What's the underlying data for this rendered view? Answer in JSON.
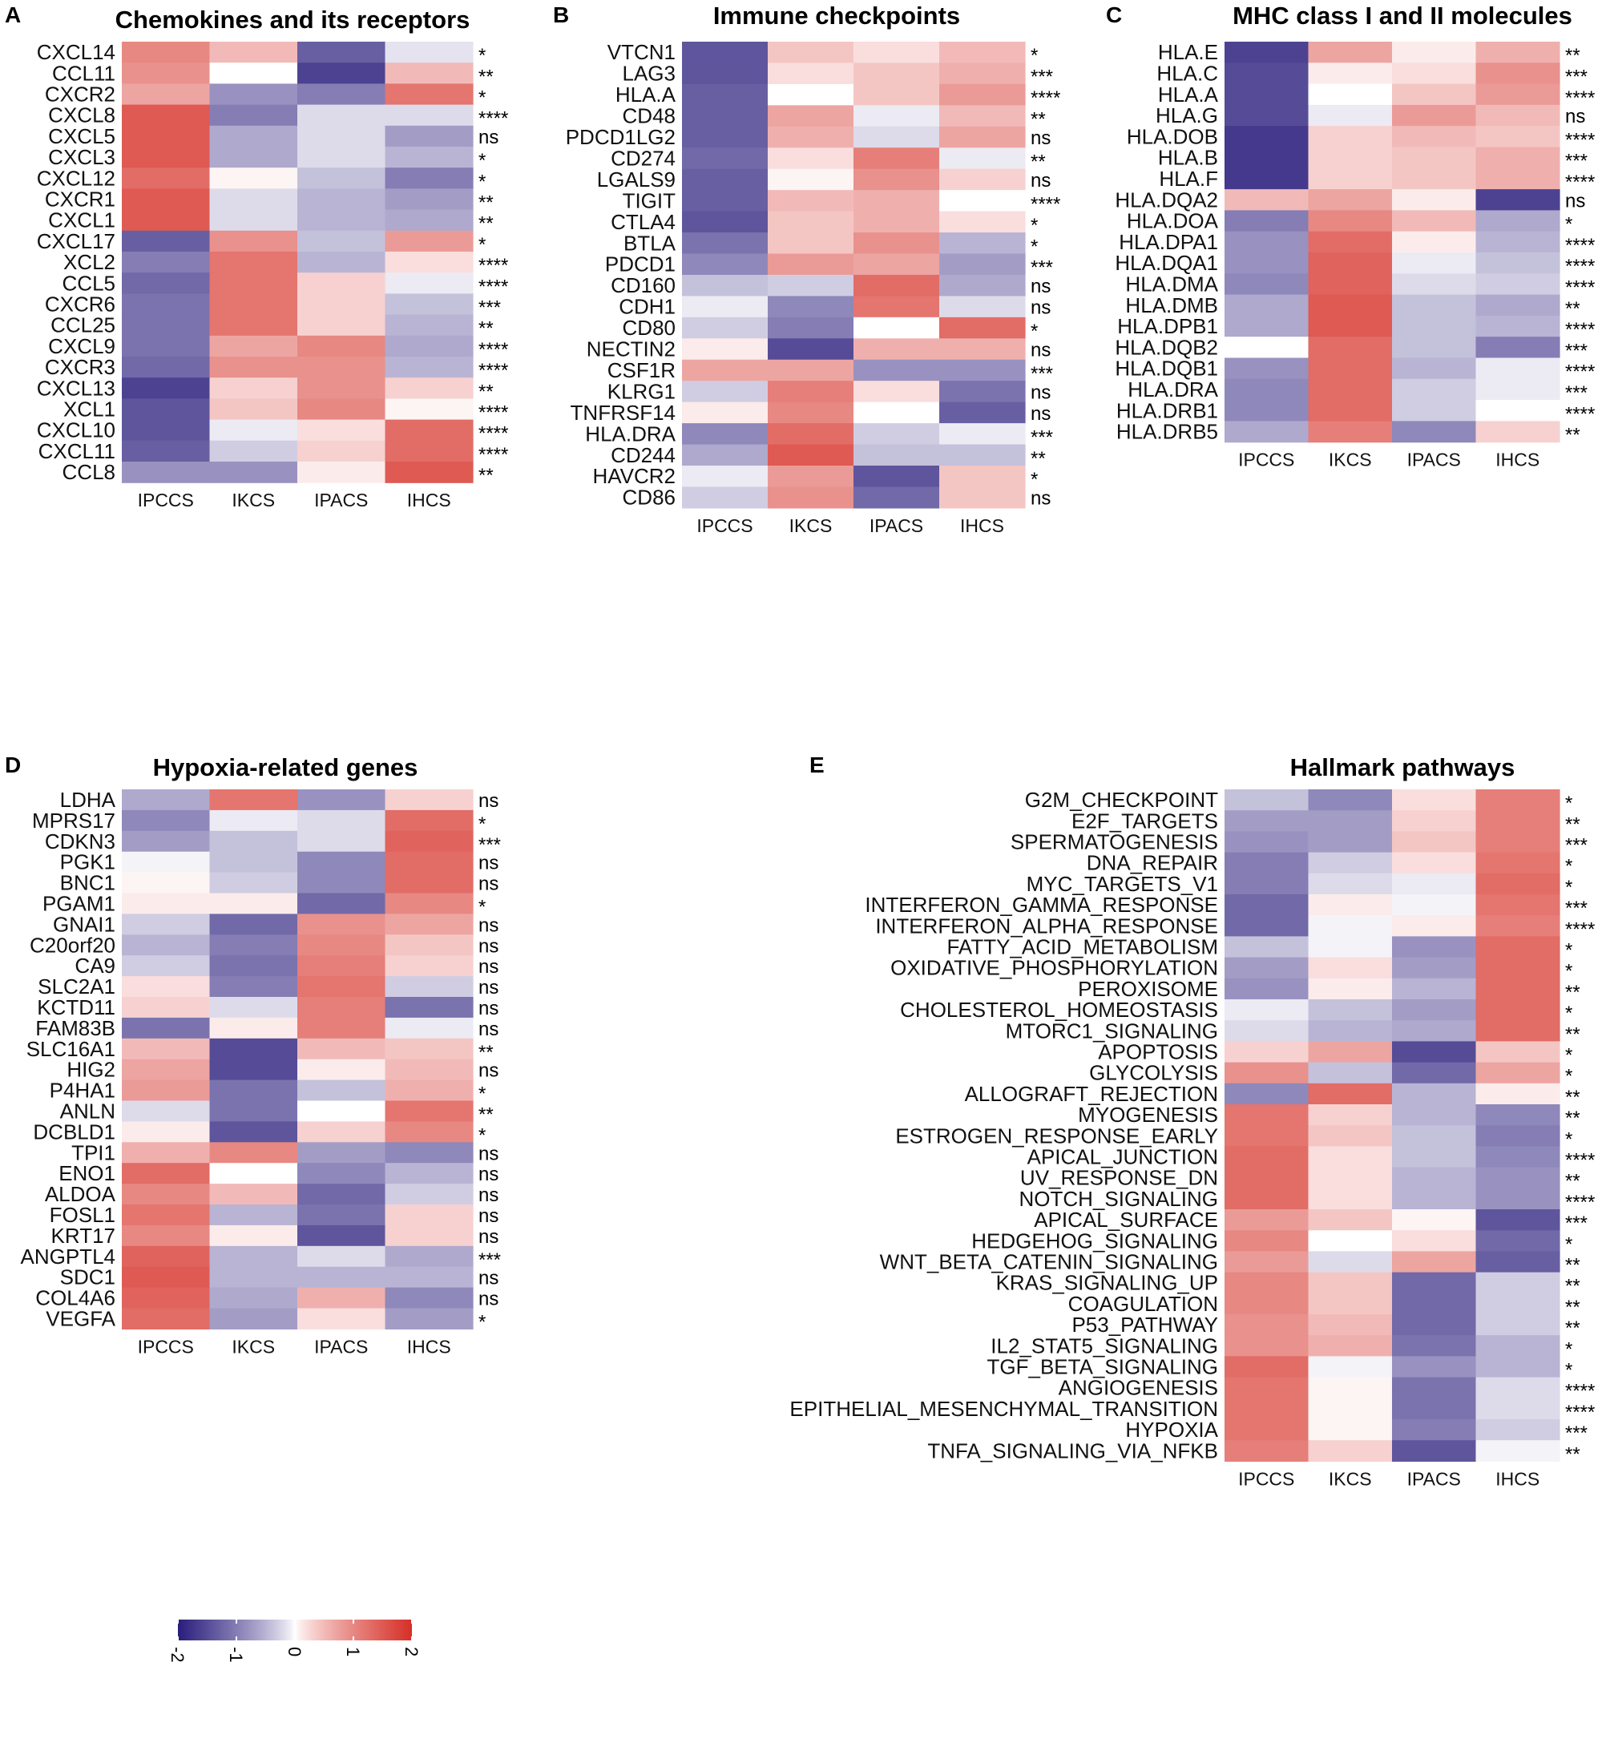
{
  "colors": {
    "low": "#2a1d7c",
    "mid": "#ffffff",
    "high": "#d62f27"
  },
  "chart_data": [
    {
      "type": "heatmap",
      "panel": "A",
      "title": "Chemokines and its receptors",
      "columns": [
        "IPCCS",
        "IKCS",
        "IPACS",
        "IHCS"
      ],
      "rows": [
        "CXCL14",
        "CCL11",
        "CXCR2",
        "CXCL8",
        "CXCL5",
        "CXCL3",
        "CXCL12",
        "CXCR1",
        "CXCL1",
        "CXCL17",
        "XCL2",
        "CCL5",
        "CXCR6",
        "CCL25",
        "CXCL9",
        "CXCR3",
        "CXCL13",
        "XCL1",
        "CXCL10",
        "CXCL11",
        "CCL8"
      ],
      "values": [
        [
          1.0,
          0.5,
          -1.3,
          -0.15
        ],
        [
          0.9,
          0.0,
          -1.6,
          0.5
        ],
        [
          0.7,
          -0.8,
          -1.0,
          1.2
        ],
        [
          1.5,
          -1.0,
          -0.2,
          -0.2
        ],
        [
          1.5,
          -0.6,
          -0.2,
          -0.7
        ],
        [
          1.5,
          -0.6,
          -0.2,
          -0.5
        ],
        [
          1.3,
          0.05,
          -0.4,
          -1.0
        ],
        [
          1.5,
          -0.2,
          -0.5,
          -0.7
        ],
        [
          1.5,
          -0.2,
          -0.5,
          -0.6
        ],
        [
          -1.3,
          0.9,
          -0.4,
          0.8
        ],
        [
          -1.0,
          1.2,
          -0.5,
          0.2
        ],
        [
          -1.2,
          1.2,
          0.3,
          -0.1
        ],
        [
          -1.1,
          1.2,
          0.3,
          -0.4
        ],
        [
          -1.1,
          1.2,
          0.3,
          -0.5
        ],
        [
          -1.1,
          0.7,
          1.0,
          -0.6
        ],
        [
          -1.2,
          0.9,
          0.9,
          -0.5
        ],
        [
          -1.6,
          0.3,
          0.9,
          0.3
        ],
        [
          -1.4,
          0.4,
          1.0,
          0.05
        ],
        [
          -1.4,
          -0.1,
          0.2,
          1.3
        ],
        [
          -1.3,
          -0.3,
          0.3,
          1.3
        ],
        [
          -0.8,
          -0.8,
          0.1,
          1.5
        ]
      ],
      "significance": [
        "*",
        "**",
        "*",
        "****",
        "ns",
        "*",
        "*",
        "**",
        "**",
        "*",
        "****",
        "****",
        "***",
        "**",
        "****",
        "****",
        "**",
        "****",
        "****",
        "****",
        "**"
      ],
      "xlabel": "",
      "ylabel": "",
      "zlim": [
        -2,
        2
      ]
    },
    {
      "type": "heatmap",
      "panel": "B",
      "title": "Immune checkpoints",
      "columns": [
        "IPCCS",
        "IKCS",
        "IPACS",
        "IHCS"
      ],
      "rows": [
        "VTCN1",
        "LAG3",
        "HLA.A",
        "CD48",
        "PDCD1LG2",
        "CD274",
        "LGALS9",
        "TIGIT",
        "CTLA4",
        "BTLA",
        "PDCD1",
        "CD160",
        "CDH1",
        "CD80",
        "NECTIN2",
        "CSF1R",
        "KLRG1",
        "TNFRSF14",
        "HLA.DRA",
        "CD244",
        "HAVCR2",
        "CD86"
      ],
      "values": [
        [
          -1.4,
          0.4,
          0.2,
          0.5
        ],
        [
          -1.4,
          0.2,
          0.4,
          0.6
        ],
        [
          -1.3,
          0.0,
          0.4,
          0.8
        ],
        [
          -1.3,
          0.7,
          -0.1,
          0.5
        ],
        [
          -1.3,
          0.6,
          -0.2,
          0.7
        ],
        [
          -1.2,
          0.2,
          1.1,
          -0.1
        ],
        [
          -1.3,
          0.05,
          0.9,
          0.3
        ],
        [
          -1.3,
          0.5,
          0.6,
          0.0
        ],
        [
          -1.4,
          0.4,
          0.6,
          0.2
        ],
        [
          -1.1,
          0.4,
          0.9,
          -0.5
        ],
        [
          -0.9,
          0.8,
          0.7,
          -0.7
        ],
        [
          -0.4,
          -0.3,
          1.3,
          -0.6
        ],
        [
          -0.1,
          -0.9,
          1.2,
          -0.2
        ],
        [
          -0.3,
          -1.0,
          0.0,
          1.3
        ],
        [
          0.1,
          -1.5,
          0.6,
          0.6
        ],
        [
          0.7,
          0.7,
          -0.8,
          -0.8
        ],
        [
          -0.3,
          1.1,
          0.2,
          -1.1
        ],
        [
          0.1,
          1.0,
          0.0,
          -1.3
        ],
        [
          -0.9,
          1.3,
          -0.3,
          -0.1
        ],
        [
          -0.6,
          1.5,
          -0.4,
          -0.4
        ],
        [
          -0.1,
          0.8,
          -1.4,
          0.4
        ],
        [
          -0.3,
          0.9,
          -1.2,
          0.4
        ]
      ],
      "significance": [
        "*",
        "***",
        "****",
        "**",
        "ns",
        "**",
        "ns",
        "****",
        "*",
        "*",
        "***",
        "ns",
        "ns",
        "*",
        "ns",
        "***",
        "ns",
        "ns",
        "***",
        "**",
        "*",
        "ns"
      ],
      "xlabel": "",
      "ylabel": "",
      "zlim": [
        -2,
        2
      ]
    },
    {
      "type": "heatmap",
      "panel": "C",
      "title": "MHC class I and II molecules",
      "columns": [
        "IPCCS",
        "IKCS",
        "IPACS",
        "IHCS"
      ],
      "rows": [
        "HLA.E",
        "HLA.C",
        "HLA.A",
        "HLA.G",
        "HLA.DOB",
        "HLA.B",
        "HLA.F",
        "HLA.DQA2",
        "HLA.DOA",
        "HLA.DPA1",
        "HLA.DQA1",
        "HLA.DMA",
        "HLA.DMB",
        "HLA.DPB1",
        "HLA.DQB2",
        "HLA.DQB1",
        "HLA.DRA",
        "HLA.DRB1",
        "HLA.DRB5"
      ],
      "values": [
        [
          -1.6,
          0.7,
          0.1,
          0.6
        ],
        [
          -1.5,
          0.1,
          0.2,
          0.9
        ],
        [
          -1.5,
          0.0,
          0.4,
          0.8
        ],
        [
          -1.5,
          -0.1,
          0.8,
          0.5
        ],
        [
          -1.7,
          0.3,
          0.5,
          0.4
        ],
        [
          -1.7,
          0.3,
          0.4,
          0.6
        ],
        [
          -1.7,
          0.3,
          0.4,
          0.6
        ],
        [
          0.5,
          0.7,
          0.1,
          -1.6
        ],
        [
          -1.0,
          1.0,
          0.5,
          -0.6
        ],
        [
          -0.8,
          1.3,
          0.1,
          -0.5
        ],
        [
          -0.8,
          1.4,
          -0.1,
          -0.4
        ],
        [
          -0.9,
          1.4,
          -0.2,
          -0.3
        ],
        [
          -0.6,
          1.5,
          -0.4,
          -0.6
        ],
        [
          -0.6,
          1.5,
          -0.4,
          -0.5
        ],
        [
          0.0,
          1.3,
          -0.4,
          -1.0
        ],
        [
          -0.8,
          1.3,
          -0.5,
          -0.1
        ],
        [
          -0.9,
          1.3,
          -0.3,
          -0.1
        ],
        [
          -0.9,
          1.3,
          -0.3,
          0.0
        ],
        [
          -0.6,
          1.1,
          -0.9,
          0.3
        ]
      ],
      "significance": [
        "**",
        "***",
        "****",
        "ns",
        "****",
        "***",
        "****",
        "ns",
        "*",
        "****",
        "****",
        "****",
        "**",
        "****",
        "***",
        "****",
        "***",
        "****",
        "**"
      ],
      "xlabel": "",
      "ylabel": "",
      "zlim": [
        -2,
        2
      ]
    },
    {
      "type": "heatmap",
      "panel": "D",
      "title": "Hypoxia-related genes",
      "columns": [
        "IPCCS",
        "IKCS",
        "IPACS",
        "IHCS"
      ],
      "rows": [
        "LDHA",
        "MPRS17",
        "CDKN3",
        "PGK1",
        "BNC1",
        "PGAM1",
        "GNAI1",
        "C20orf20",
        "CA9",
        "SLC2A1",
        "KCTD11",
        "FAM83B",
        "SLC16A1",
        "HIG2",
        "P4HA1",
        "ANLN",
        "DCBLD1",
        "TPI1",
        "ENO1",
        "ALDOA",
        "FOSL1",
        "KRT17",
        "ANGPTL4",
        "SDC1",
        "COL4A6",
        "VEGFA"
      ],
      "values": [
        [
          -0.6,
          1.2,
          -0.8,
          0.3
        ],
        [
          -0.9,
          -0.1,
          -0.2,
          1.3
        ],
        [
          -0.7,
          -0.4,
          -0.2,
          1.4
        ],
        [
          -0.05,
          -0.4,
          -0.9,
          1.3
        ],
        [
          0.05,
          -0.3,
          -0.9,
          1.3
        ],
        [
          0.1,
          0.1,
          -1.2,
          1.0
        ],
        [
          -0.3,
          -1.2,
          0.9,
          0.7
        ],
        [
          -0.5,
          -1.0,
          1.0,
          0.4
        ],
        [
          -0.3,
          -1.1,
          1.1,
          0.3
        ],
        [
          0.2,
          -1.0,
          1.2,
          -0.3
        ],
        [
          0.3,
          -0.2,
          1.1,
          -1.1
        ],
        [
          -1.1,
          0.1,
          1.1,
          -0.1
        ],
        [
          0.5,
          -1.5,
          0.5,
          0.4
        ],
        [
          0.7,
          -1.5,
          0.1,
          0.5
        ],
        [
          0.8,
          -1.1,
          -0.4,
          0.6
        ],
        [
          -0.2,
          -1.1,
          0.0,
          1.2
        ],
        [
          0.1,
          -1.4,
          0.3,
          1.0
        ],
        [
          0.6,
          1.0,
          -0.7,
          -0.9
        ],
        [
          1.3,
          0.0,
          -0.9,
          -0.5
        ],
        [
          1.0,
          0.5,
          -1.2,
          -0.3
        ],
        [
          1.2,
          -0.5,
          -1.1,
          0.3
        ],
        [
          1.0,
          0.1,
          -1.4,
          0.3
        ],
        [
          1.4,
          -0.5,
          -0.2,
          -0.6
        ],
        [
          1.5,
          -0.5,
          -0.5,
          -0.5
        ],
        [
          1.4,
          -0.6,
          0.6,
          -0.9
        ],
        [
          1.3,
          -0.7,
          0.2,
          -0.7
        ]
      ],
      "significance": [
        "ns",
        "*",
        "***",
        "ns",
        "ns",
        "*",
        "ns",
        "ns",
        "ns",
        "ns",
        "ns",
        "ns",
        "**",
        "ns",
        "*",
        "**",
        "*",
        "ns",
        "ns",
        "ns",
        "ns",
        "ns",
        "***",
        "ns",
        "ns",
        "*"
      ],
      "xlabel": "",
      "ylabel": "",
      "zlim": [
        -2,
        2
      ]
    },
    {
      "type": "heatmap",
      "panel": "E",
      "title": "Hallmark pathways",
      "columns": [
        "IPCCS",
        "IKCS",
        "IPACS",
        "IHCS"
      ],
      "rows": [
        "G2M_CHECKPOINT",
        "E2F_TARGETS",
        "SPERMATOGENESIS",
        "DNA_REPAIR",
        "MYC_TARGETS_V1",
        "INTERFERON_GAMMA_RESPONSE",
        "INTERFERON_ALPHA_RESPONSE",
        "FATTY_ACID_METABOLISM",
        "OXIDATIVE_PHOSPHORYLATION",
        "PEROXISOME",
        "CHOLESTEROL_HOMEOSTASIS",
        "MTORC1_SIGNALING",
        "APOPTOSIS",
        "GLYCOLYSIS",
        "ALLOGRAFT_REJECTION",
        "MYOGENESIS",
        "ESTROGEN_RESPONSE_EARLY",
        "APICAL_JUNCTION",
        "UV_RESPONSE_DN",
        "NOTCH_SIGNALING",
        "APICAL_SURFACE",
        "HEDGEHOG_SIGNALING",
        "WNT_BETA_CATENIN_SIGNALING",
        "KRAS_SIGNALING_UP",
        "COAGULATION",
        "P53_PATHWAY",
        "IL2_STAT5_SIGNALING",
        "TGF_BETA_SIGNALING",
        "ANGIOGENESIS",
        "EPITHELIAL_MESENCHYMAL_TRANSITION",
        "HYPOXIA",
        "TNFA_SIGNALING_VIA_NFKB"
      ],
      "values": [
        [
          -0.4,
          -0.9,
          0.2,
          1.1
        ],
        [
          -0.7,
          -0.7,
          0.3,
          1.1
        ],
        [
          -0.8,
          -0.7,
          0.4,
          1.1
        ],
        [
          -1.0,
          -0.3,
          0.2,
          1.2
        ],
        [
          -1.0,
          -0.2,
          -0.1,
          1.3
        ],
        [
          -1.2,
          0.1,
          -0.05,
          1.2
        ],
        [
          -1.2,
          -0.05,
          0.1,
          1.1
        ],
        [
          -0.4,
          -0.05,
          -0.8,
          1.3
        ],
        [
          -0.7,
          0.2,
          -0.7,
          1.3
        ],
        [
          -0.8,
          0.1,
          -0.5,
          1.3
        ],
        [
          -0.1,
          -0.4,
          -0.7,
          1.3
        ],
        [
          -0.2,
          -0.5,
          -0.6,
          1.3
        ],
        [
          0.3,
          0.7,
          -1.5,
          0.4
        ],
        [
          0.9,
          -0.4,
          -1.2,
          0.7
        ],
        [
          -0.9,
          1.3,
          -0.5,
          0.1
        ],
        [
          1.2,
          0.3,
          -0.5,
          -0.9
        ],
        [
          1.2,
          0.4,
          -0.4,
          -1.0
        ],
        [
          1.3,
          0.2,
          -0.4,
          -0.9
        ],
        [
          1.3,
          0.2,
          -0.5,
          -0.8
        ],
        [
          1.3,
          0.2,
          -0.5,
          -0.8
        ],
        [
          0.8,
          0.4,
          0.05,
          -1.4
        ],
        [
          1.0,
          0.0,
          0.2,
          -1.2
        ],
        [
          0.8,
          -0.2,
          0.7,
          -1.3
        ],
        [
          1.0,
          0.4,
          -1.2,
          -0.3
        ],
        [
          1.0,
          0.4,
          -1.2,
          -0.3
        ],
        [
          0.9,
          0.5,
          -1.2,
          -0.3
        ],
        [
          0.9,
          0.6,
          -1.1,
          -0.5
        ],
        [
          1.3,
          -0.05,
          -0.8,
          -0.5
        ],
        [
          1.2,
          0.05,
          -1.1,
          -0.2
        ],
        [
          1.2,
          0.05,
          -1.1,
          -0.2
        ],
        [
          1.2,
          0.05,
          -1.0,
          -0.3
        ],
        [
          1.1,
          0.3,
          -1.4,
          -0.05
        ]
      ],
      "significance": [
        "*",
        "**",
        "***",
        "*",
        "*",
        "***",
        "****",
        "*",
        "*",
        "**",
        "*",
        "**",
        "*",
        "*",
        "**",
        "**",
        "*",
        "****",
        "**",
        "****",
        "***",
        "*",
        "**",
        "**",
        "**",
        "**",
        "*",
        "*",
        "****",
        "****",
        "***",
        "**"
      ],
      "xlabel": "",
      "ylabel": "",
      "zlim": [
        -2,
        2
      ]
    }
  ],
  "legend": {
    "type": "colorbar",
    "ticks": [
      -2,
      -1,
      0,
      1,
      2
    ],
    "tick_labels": [
      "-2",
      "-1",
      "0",
      "1",
      "2"
    ]
  }
}
